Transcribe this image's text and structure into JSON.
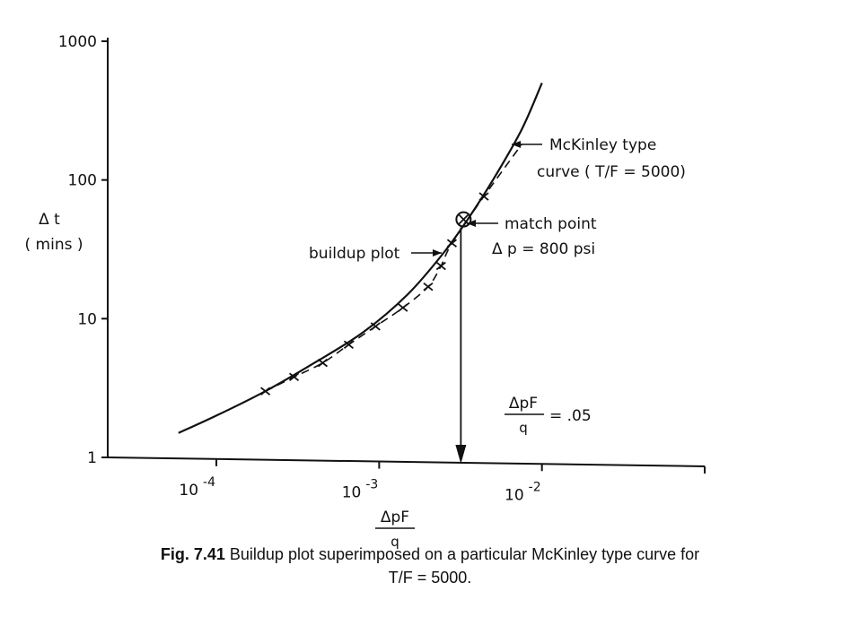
{
  "chart_data": {
    "type": "line",
    "xscale": "log",
    "yscale": "log",
    "xlim": [
      2.15e-05,
      0.1
    ],
    "ylim": [
      1,
      1000
    ],
    "y_ticks": [
      {
        "value": 1,
        "label": "1"
      },
      {
        "value": 10,
        "label": "10"
      },
      {
        "value": 100,
        "label": "100"
      },
      {
        "value": 1000,
        "label": "1000"
      }
    ],
    "x_ticks": [
      {
        "value": 0.0001,
        "base": "10",
        "exp": "-4"
      },
      {
        "value": 0.001,
        "base": "10",
        "exp": "-3"
      },
      {
        "value": 0.01,
        "base": "10",
        "exp": "-2"
      },
      {
        "value": 0.1,
        "base": "",
        "exp": ""
      }
    ],
    "ylabel": {
      "line1": "Δ t",
      "line2": "( mins )"
    },
    "xlabel": {
      "numerator": "ΔpF",
      "denominator": "q"
    },
    "series": [
      {
        "name": "McKinley type curve ( T/F = 5000)",
        "style": "solid",
        "x": [
          5.85e-05,
          0.0001,
          0.0002,
          0.0004,
          0.0008,
          0.0015,
          0.0025,
          0.0035,
          0.005,
          0.0075,
          0.01
        ],
        "y": [
          1.5,
          2.0,
          3.0,
          4.8,
          8.0,
          15.0,
          30.0,
          52.0,
          100.0,
          230.0,
          500.0
        ]
      },
      {
        "name": "buildup plot",
        "style": "dashed",
        "marker": "x",
        "x": [
          0.0002,
          0.0003,
          0.00045,
          0.00065,
          0.00095,
          0.0014,
          0.002,
          0.0024,
          0.0028,
          0.0044,
          0.0075
        ],
        "y": [
          3.0,
          3.8,
          4.8,
          6.5,
          8.8,
          12.0,
          17.0,
          24.0,
          35.0,
          76.0,
          180.0
        ]
      }
    ],
    "match_point": {
      "x": 0.0033,
      "y": 52
    },
    "annotations": {
      "curve_label_1": "McKinley type",
      "curve_label_2": "curve ( T/F = 5000)",
      "buildup_label": "buildup plot",
      "match_label": "match point",
      "delta_p_label": "Δ p = 800 psi",
      "ratio_numerator": "ΔpF",
      "ratio_denominator": "q",
      "ratio_value": "= .05"
    },
    "grid": false,
    "legend": "none"
  },
  "caption": {
    "figure_number": "Fig. 7.41",
    "line1": "Buildup plot superimposed on a particular McKinley type curve for",
    "line2": "T/F = 5000."
  }
}
